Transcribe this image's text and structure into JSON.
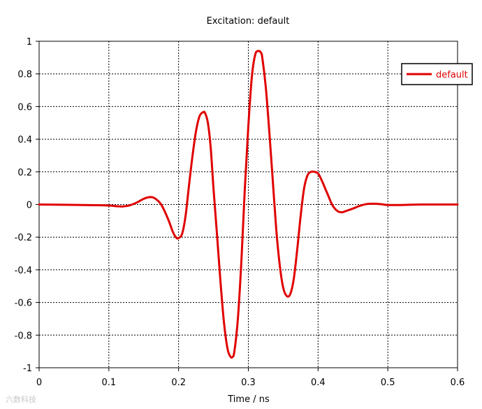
{
  "chart_data": {
    "type": "line",
    "title": "Excitation: default",
    "xlabel": "Time / ns",
    "ylabel": "",
    "xlim": [
      0,
      0.6
    ],
    "ylim": [
      -1,
      1
    ],
    "x_ticks": [
      0,
      0.1,
      0.2,
      0.3,
      0.4,
      0.5,
      0.6
    ],
    "x_tick_labels": [
      "0",
      "0.1",
      "0.2",
      "0.3",
      "0.4",
      "0.5",
      "0.6"
    ],
    "y_ticks": [
      -1,
      -0.8,
      -0.6,
      -0.4,
      -0.2,
      0,
      0.2,
      0.4,
      0.6,
      0.8,
      1
    ],
    "y_tick_labels": [
      "-1",
      "-0.8",
      "-0.6",
      "-0.4",
      "-0.2",
      "0",
      "0.2",
      "0.4",
      "0.6",
      "0.8",
      "1"
    ],
    "grid": true,
    "legend_position": "top-right",
    "series": [
      {
        "name": "default",
        "color": "#e00000",
        "x": [
          0,
          0.09,
          0.11,
          0.12,
          0.13,
          0.14,
          0.15,
          0.158,
          0.165,
          0.175,
          0.185,
          0.192,
          0.197,
          0.2,
          0.205,
          0.21,
          0.215,
          0.22,
          0.225,
          0.23,
          0.235,
          0.238,
          0.242,
          0.246,
          0.25,
          0.255,
          0.26,
          0.265,
          0.27,
          0.274,
          0.277,
          0.28,
          0.285,
          0.29,
          0.295,
          0.3,
          0.305,
          0.31,
          0.315,
          0.318,
          0.32,
          0.325,
          0.33,
          0.335,
          0.34,
          0.345,
          0.35,
          0.355,
          0.36,
          0.365,
          0.37,
          0.375,
          0.38,
          0.385,
          0.39,
          0.395,
          0.4,
          0.405,
          0.41,
          0.415,
          0.42,
          0.425,
          0.43,
          0.435,
          0.44,
          0.45,
          0.46,
          0.47,
          0.48,
          0.49,
          0.5,
          0.52,
          0.55,
          0.6
        ],
        "y": [
          0,
          -0.005,
          -0.01,
          -0.012,
          -0.005,
          0.012,
          0.035,
          0.045,
          0.04,
          0.0,
          -0.09,
          -0.17,
          -0.205,
          -0.205,
          -0.18,
          -0.07,
          0.12,
          0.3,
          0.45,
          0.54,
          0.565,
          0.56,
          0.5,
          0.35,
          0.1,
          -0.18,
          -0.47,
          -0.72,
          -0.88,
          -0.93,
          -0.935,
          -0.9,
          -0.7,
          -0.35,
          0.1,
          0.48,
          0.78,
          0.92,
          0.94,
          0.93,
          0.9,
          0.72,
          0.45,
          0.15,
          -0.15,
          -0.37,
          -0.51,
          -0.56,
          -0.55,
          -0.46,
          -0.28,
          -0.07,
          0.1,
          0.18,
          0.2,
          0.2,
          0.19,
          0.15,
          0.1,
          0.05,
          0.0,
          -0.03,
          -0.045,
          -0.047,
          -0.04,
          -0.025,
          -0.008,
          0.003,
          0.005,
          0.002,
          -0.003,
          -0.003,
          0,
          0
        ]
      }
    ]
  },
  "watermark": "六数科技"
}
